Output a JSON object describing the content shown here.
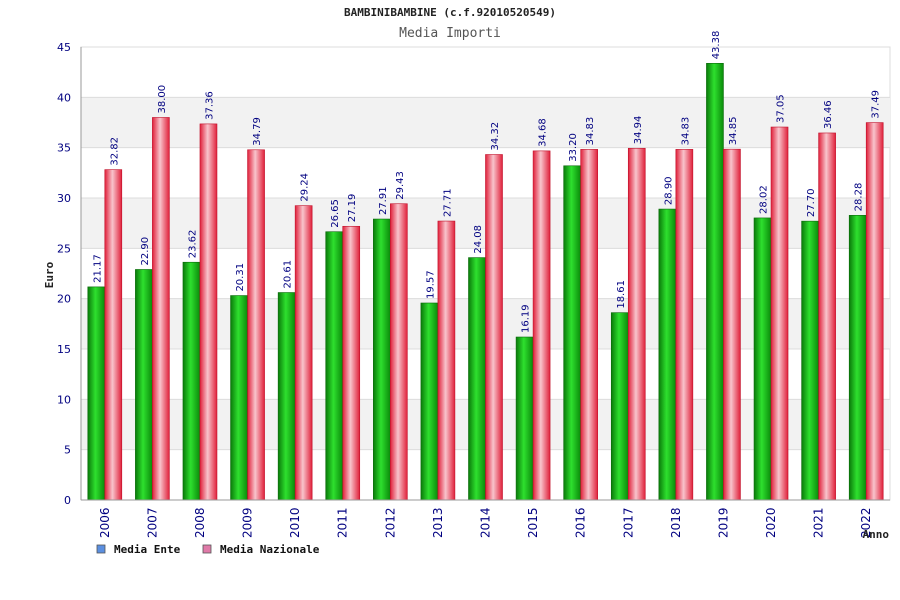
{
  "chart_data": {
    "type": "bar",
    "title": "BAMBINIBAMBINE (c.f.92010520549)",
    "subtitle": "Media Importi",
    "xlabel": "Anno",
    "ylabel": "Euro",
    "ylim": [
      0,
      45
    ],
    "yticks": [
      0,
      5,
      10,
      15,
      20,
      25,
      30,
      35,
      40,
      45
    ],
    "grid": true,
    "legend_position": "bottom-left",
    "categories": [
      "2006",
      "2007",
      "2008",
      "2009",
      "2010",
      "2011",
      "2012",
      "2013",
      "2014",
      "2015",
      "2016",
      "2017",
      "2018",
      "2019",
      "2020",
      "2021",
      "2022"
    ],
    "series": [
      {
        "name": "Media Ente",
        "color": "#10a010",
        "legend_color": "#5b8fe0",
        "values": [
          21.17,
          22.9,
          23.62,
          20.31,
          20.61,
          26.65,
          27.91,
          19.57,
          24.08,
          16.19,
          33.2,
          18.61,
          28.9,
          43.38,
          28.02,
          27.7,
          28.28
        ],
        "labels": [
          "21.17",
          "22.90",
          "23.62",
          "20.31",
          "20.61",
          "26.65",
          "27.91",
          "19.57",
          "24.08",
          "16.19",
          "33.20",
          "18.61",
          "28.90",
          "43.38",
          "28.02",
          "27.70",
          "28.28"
        ]
      },
      {
        "name": "Media Nazionale",
        "color": "#e0303a",
        "legend_color": "#e07aa8",
        "values": [
          32.82,
          38.0,
          37.36,
          34.79,
          29.24,
          27.19,
          29.43,
          27.71,
          34.32,
          34.68,
          34.83,
          34.94,
          34.83,
          34.85,
          37.05,
          36.46,
          37.49
        ],
        "labels": [
          "32.82",
          "38.00",
          "37.36",
          "34.79",
          "29.24",
          "27.19",
          "29.43",
          "27.71",
          "34.32",
          "34.68",
          "34.83",
          "34.94",
          "34.83",
          "34.85",
          "37.05",
          "36.46",
          "37.49"
        ]
      }
    ]
  }
}
